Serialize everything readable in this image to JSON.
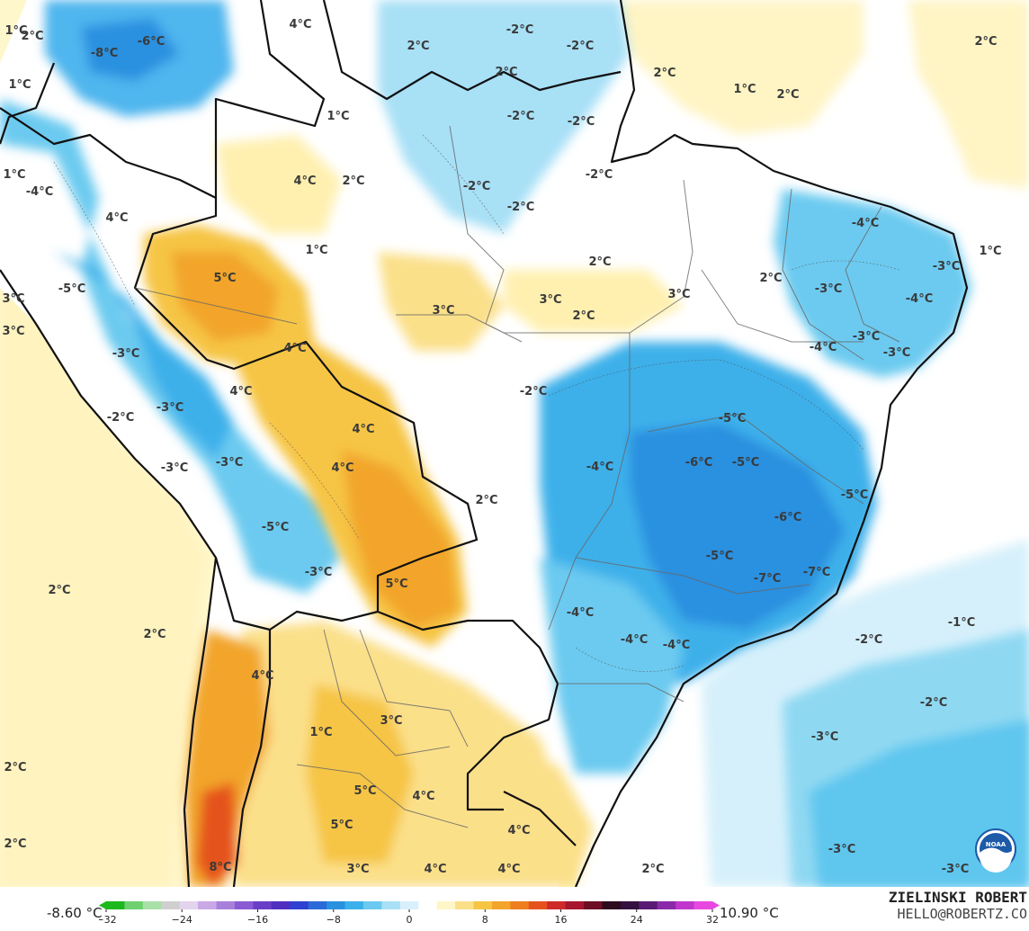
{
  "legend": {
    "min_label": "-8.60 °C",
    "max_label": "10.90 °C",
    "ticks": [
      "−32",
      "−24",
      "−16",
      "−8",
      "0",
      "8",
      "16",
      "24",
      "32"
    ],
    "colors": [
      "#1db81d",
      "#6fd06f",
      "#a8e0a8",
      "#cfcfcf",
      "#e2d3ee",
      "#c9a8e6",
      "#a880dc",
      "#8a5bd2",
      "#6a3fc8",
      "#4e2fc0",
      "#3040d0",
      "#2c6ad8",
      "#2a90e0",
      "#3cb0ea",
      "#6ccaf0",
      "#a8e0f6",
      "#d8f0fb",
      "#ffffff",
      "#fff6c8",
      "#fbe08a",
      "#f6c544",
      "#f2a52a",
      "#ee7e1e",
      "#e5521e",
      "#cf2a2a",
      "#a8162e",
      "#6e0e24",
      "#2e0a1e",
      "#34103e",
      "#5a1a74",
      "#8a2aa8",
      "#c036cc",
      "#e848e0"
    ]
  },
  "credit": {
    "name": "ZIELINSKI ROBERT",
    "email": "HELLO@ROBERTZ.CO",
    "logo_text": "NOAA"
  },
  "labels": [
    {
      "text": "1°C"
    },
    {
      "text": "2°C"
    },
    {
      "text": "1°C"
    },
    {
      "text": "-8°C"
    },
    {
      "text": "-6°C"
    },
    {
      "text": "4°C"
    },
    {
      "text": "2°C"
    },
    {
      "text": "-2°C"
    },
    {
      "text": "-2°C"
    },
    {
      "text": "2°C"
    },
    {
      "text": "2°C"
    },
    {
      "text": "1°C"
    },
    {
      "text": "2°C"
    },
    {
      "text": "2°C"
    },
    {
      "text": "1°C"
    },
    {
      "text": "-2°C"
    },
    {
      "text": "-2°C"
    },
    {
      "text": "1°C"
    },
    {
      "text": "-4°C"
    },
    {
      "text": "4°C"
    },
    {
      "text": "2°C"
    },
    {
      "text": "-2°C"
    },
    {
      "text": "-2°C"
    },
    {
      "text": "-2°C"
    },
    {
      "text": "4°C"
    },
    {
      "text": "-4°C"
    },
    {
      "text": "1°C"
    },
    {
      "text": "1°C"
    },
    {
      "text": "2°C"
    },
    {
      "text": "5°C"
    },
    {
      "text": "-5°C"
    },
    {
      "text": "3°C"
    },
    {
      "text": "3°C"
    },
    {
      "text": "3°C"
    },
    {
      "text": "2°C"
    },
    {
      "text": "3°C"
    },
    {
      "text": "2°C"
    },
    {
      "text": "-3°C"
    },
    {
      "text": "-3°C"
    },
    {
      "text": "-4°C"
    },
    {
      "text": "3°C"
    },
    {
      "text": "4°C"
    },
    {
      "text": "-3°C"
    },
    {
      "text": "-4°C"
    },
    {
      "text": "-3°C"
    },
    {
      "text": "-3°C"
    },
    {
      "text": "4°C"
    },
    {
      "text": "-2°C"
    },
    {
      "text": "-2°C"
    },
    {
      "text": "-3°C"
    },
    {
      "text": "-5°C"
    },
    {
      "text": "4°C"
    },
    {
      "text": "-3°C"
    },
    {
      "text": "-3°C"
    },
    {
      "text": "4°C"
    },
    {
      "text": "-4°C"
    },
    {
      "text": "-6°C"
    },
    {
      "text": "-5°C"
    },
    {
      "text": "2°C"
    },
    {
      "text": "-5°C"
    },
    {
      "text": "-6°C"
    },
    {
      "text": "-5°C"
    },
    {
      "text": "2°C"
    },
    {
      "text": "-3°C"
    },
    {
      "text": "-5°C"
    },
    {
      "text": "5°C"
    },
    {
      "text": "-7°C"
    },
    {
      "text": "-7°C"
    },
    {
      "text": "2°C"
    },
    {
      "text": "-4°C"
    },
    {
      "text": "-1°C"
    },
    {
      "text": "-4°C"
    },
    {
      "text": "-4°C"
    },
    {
      "text": "-2°C"
    },
    {
      "text": "4°C"
    },
    {
      "text": "-2°C"
    },
    {
      "text": "3°C"
    },
    {
      "text": "1°C"
    },
    {
      "text": "-3°C"
    },
    {
      "text": "2°C"
    },
    {
      "text": "5°C"
    },
    {
      "text": "4°C"
    },
    {
      "text": "5°C"
    },
    {
      "text": "4°C"
    },
    {
      "text": "2°C"
    },
    {
      "text": "-3°C"
    },
    {
      "text": "8°C"
    },
    {
      "text": "3°C"
    },
    {
      "text": "4°C"
    },
    {
      "text": "4°C"
    },
    {
      "text": "2°C"
    },
    {
      "text": "-3°C"
    }
  ]
}
